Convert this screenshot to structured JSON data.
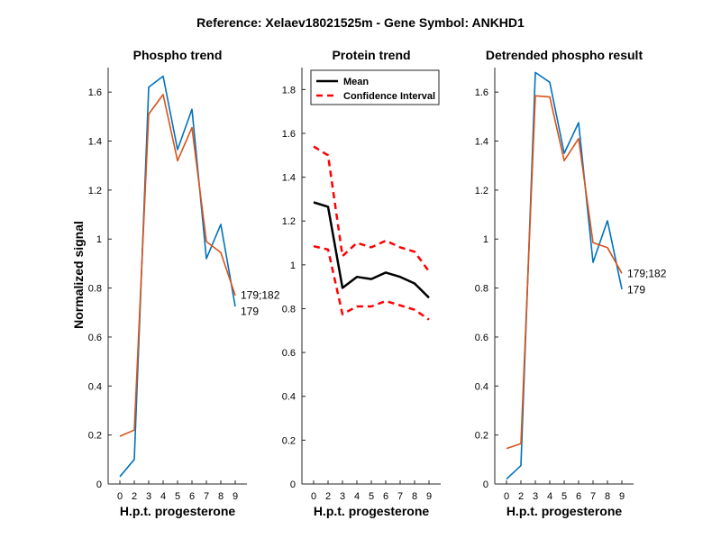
{
  "figure": {
    "title": "Reference:  Xelaev18021525m - Gene Symbol:  ANKHD1",
    "ylabel": "Normalized signal",
    "xlabel": "H.p.t. progesterone",
    "x_ticks": [
      "0",
      "2",
      "3",
      "4",
      "5",
      "6",
      "7",
      "8",
      "9"
    ]
  },
  "colors": {
    "blue": "#0072BD",
    "orange": "#D95319",
    "black": "#000000",
    "red": "#FF0000"
  },
  "chart_data": [
    {
      "type": "line",
      "title": "Phospho trend",
      "xlabel": "H.p.t. progesterone",
      "ylabel": "Normalized signal",
      "categories": [
        "0",
        "2",
        "3",
        "4",
        "5",
        "6",
        "7",
        "8",
        "9"
      ],
      "ylim": [
        0,
        1.7
      ],
      "y_ticks": [
        "0",
        "0.2",
        "0.4",
        "0.6",
        "0.8",
        "1",
        "1.2",
        "1.4",
        "1.6"
      ],
      "series": [
        {
          "name": "179",
          "color": "#0072BD",
          "values": [
            0.03,
            0.1,
            1.62,
            1.665,
            1.365,
            1.53,
            0.92,
            1.06,
            0.725
          ]
        },
        {
          "name": "179;182",
          "color": "#D95319",
          "values": [
            0.195,
            0.22,
            1.51,
            1.59,
            1.32,
            1.455,
            0.99,
            0.945,
            0.77
          ]
        }
      ]
    },
    {
      "type": "line",
      "title": "Protein trend",
      "xlabel": "H.p.t. progesterone",
      "categories": [
        "0",
        "2",
        "3",
        "4",
        "5",
        "6",
        "7",
        "8",
        "9"
      ],
      "ylim": [
        0,
        1.9
      ],
      "y_ticks": [
        "0",
        "0.2",
        "0.4",
        "0.6",
        "0.8",
        "1",
        "1.2",
        "1.4",
        "1.6",
        "1.8"
      ],
      "legend": {
        "placement": "top-left",
        "mean_label": "Mean",
        "ci_label": "Confidence Interval"
      },
      "series": [
        {
          "name": "Mean",
          "color": "#000000",
          "style": "solid",
          "values": [
            1.285,
            1.265,
            0.895,
            0.945,
            0.935,
            0.965,
            0.945,
            0.915,
            0.85
          ]
        },
        {
          "name": "Confidence Interval",
          "color": "#FF0000",
          "style": "dashed",
          "values": [
            1.54,
            1.5,
            1.04,
            1.1,
            1.08,
            1.11,
            1.08,
            1.06,
            0.97
          ]
        },
        {
          "name": "Confidence Interval",
          "color": "#FF0000",
          "style": "dashed",
          "values": [
            1.085,
            1.07,
            0.775,
            0.81,
            0.81,
            0.835,
            0.815,
            0.795,
            0.75
          ]
        }
      ]
    },
    {
      "type": "line",
      "title": "Detrended phospho result",
      "xlabel": "H.p.t. progesterone",
      "categories": [
        "0",
        "2",
        "3",
        "4",
        "5",
        "6",
        "7",
        "8",
        "9"
      ],
      "ylim": [
        0,
        1.7
      ],
      "y_ticks": [
        "0",
        "0.2",
        "0.4",
        "0.6",
        "0.8",
        "1",
        "1.2",
        "1.4",
        "1.6"
      ],
      "series": [
        {
          "name": "179",
          "color": "#0072BD",
          "values": [
            0.02,
            0.075,
            1.68,
            1.64,
            1.35,
            1.475,
            0.905,
            1.075,
            0.795
          ]
        },
        {
          "name": "179;182",
          "color": "#D95319",
          "values": [
            0.145,
            0.165,
            1.585,
            1.58,
            1.32,
            1.41,
            0.985,
            0.965,
            0.86
          ]
        }
      ]
    }
  ]
}
